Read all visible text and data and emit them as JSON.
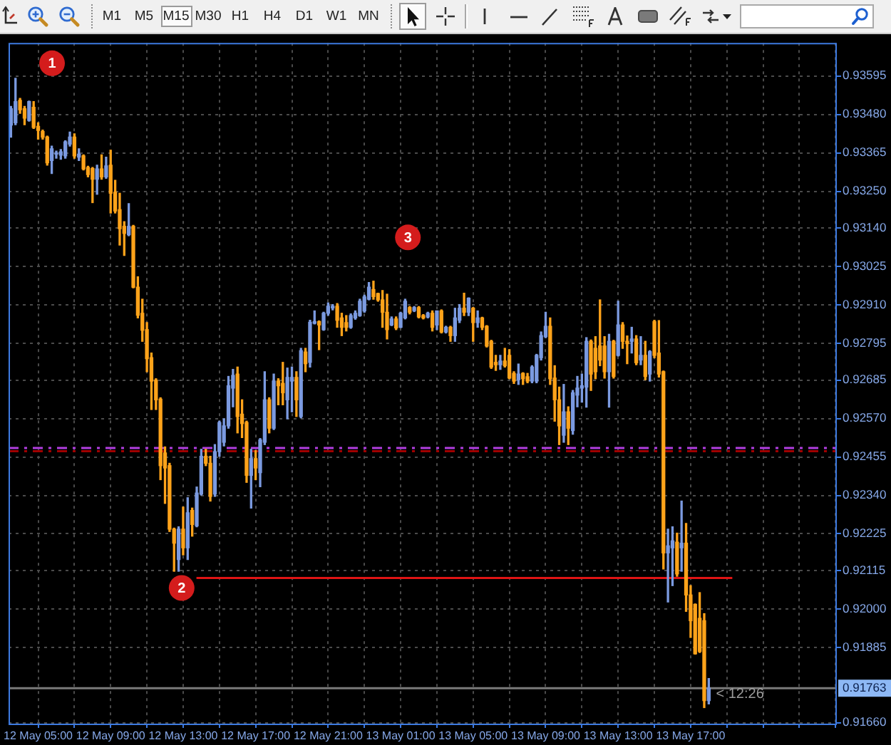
{
  "chart_data": {
    "type": "candlestick",
    "series": [
      {
        "x": [
          "--05-12T03:30",
          "--05-12T03:45",
          "--05-12T04:00",
          "--05-12T04:15",
          "--05-12T04:30",
          "--05-12T04:45",
          "--05-12T05:00",
          "--05-12T05:15",
          "--05-12T05:30",
          "--05-12T05:45",
          "--05-12T06:00",
          "--05-12T06:15",
          "--05-12T06:30",
          "--05-12T06:45",
          "--05-12T07:00",
          "--05-12T07:15",
          "--05-12T07:30",
          "--05-12T07:45",
          "--05-12T08:00",
          "--05-12T08:15",
          "--05-12T08:30",
          "--05-12T08:45",
          "--05-12T09:00",
          "--05-12T09:15",
          "--05-12T09:30",
          "--05-12T09:45",
          "--05-12T10:00",
          "--05-12T10:15",
          "--05-12T10:30",
          "--05-12T10:45",
          "--05-12T11:00",
          "--05-12T11:15",
          "--05-12T11:30",
          "--05-12T11:45",
          "--05-12T12:00",
          "--05-12T12:15",
          "--05-12T12:30",
          "--05-12T12:45",
          "--05-12T13:00",
          "--05-12T13:15",
          "--05-12T13:30",
          "--05-12T13:45",
          "--05-12T14:00",
          "--05-12T14:15",
          "--05-12T14:30",
          "--05-12T14:45",
          "--05-12T15:00",
          "--05-12T15:15",
          "--05-12T15:30",
          "--05-12T15:45",
          "--05-12T16:00",
          "--05-12T16:15",
          "--05-12T16:30",
          "--05-12T16:45",
          "--05-12T17:00",
          "--05-12T17:15",
          "--05-12T17:30",
          "--05-12T17:45",
          "--05-12T18:00",
          "--05-12T18:15",
          "--05-12T18:30",
          "--05-12T18:45",
          "--05-12T19:00",
          "--05-12T19:15",
          "--05-12T19:30",
          "--05-12T19:45",
          "--05-12T20:00",
          "--05-12T20:15",
          "--05-12T20:30",
          "--05-12T20:45",
          "--05-12T21:00",
          "--05-12T21:15",
          "--05-12T21:30",
          "--05-12T21:45",
          "--05-12T22:00",
          "--05-12T22:15",
          "--05-12T22:30",
          "--05-12T22:45",
          "--05-12T23:00",
          "--05-12T23:15",
          "--05-12T23:30",
          "--05-12T23:45",
          "--05-13T00:00",
          "--05-13T00:15",
          "--05-13T00:30",
          "--05-13T00:45",
          "--05-13T01:00",
          "--05-13T01:15",
          "--05-13T01:30",
          "--05-13T01:45",
          "--05-13T02:00",
          "--05-13T02:15",
          "--05-13T02:30",
          "--05-13T02:45",
          "--05-13T03:00",
          "--05-13T03:15",
          "--05-13T03:30",
          "--05-13T03:45",
          "--05-13T04:00",
          "--05-13T04:15",
          "--05-13T04:30",
          "--05-13T04:45",
          "--05-13T05:00",
          "--05-13T05:15",
          "--05-13T05:30",
          "--05-13T05:45",
          "--05-13T06:00",
          "--05-13T06:15",
          "--05-13T06:30",
          "--05-13T06:45",
          "--05-13T07:00",
          "--05-13T07:15",
          "--05-13T07:30",
          "--05-13T07:45",
          "--05-13T08:00",
          "--05-13T08:15",
          "--05-13T08:30",
          "--05-13T08:45",
          "--05-13T09:00",
          "--05-13T09:15",
          "--05-13T09:30",
          "--05-13T09:45",
          "--05-13T10:00",
          "--05-13T10:15",
          "--05-13T10:30",
          "--05-13T10:45",
          "--05-13T11:00",
          "--05-13T11:15",
          "--05-13T11:30",
          "--05-13T11:45",
          "--05-13T12:00",
          "--05-13T12:15",
          "--05-13T12:30",
          "--05-13T12:45",
          "--05-13T13:00",
          "--05-13T13:15",
          "--05-13T13:30",
          "--05-13T13:45",
          "--05-13T14:00",
          "--05-13T14:15",
          "--05-13T14:30",
          "--05-13T14:45",
          "--05-13T15:00",
          "--05-13T15:15",
          "--05-13T15:30",
          "--05-13T15:45",
          "--05-13T16:00",
          "--05-13T16:15",
          "--05-13T16:30",
          "--05-13T16:45",
          "--05-13T17:00",
          "--05-13T17:15",
          "--05-13T17:30",
          "--05-13T17:45",
          "--05-13T18:00"
        ],
        "ohlc": [
          [
            0.93448,
            0.93504,
            0.93412,
            0.93497
          ],
          [
            0.93455,
            0.93588,
            0.93449,
            0.93518
          ],
          [
            0.93522,
            0.93528,
            0.93483,
            0.93494
          ],
          [
            0.93497,
            0.93504,
            0.93449,
            0.93469
          ],
          [
            0.93462,
            0.9352,
            0.9346,
            0.93518
          ],
          [
            0.93501,
            0.93518,
            0.93438,
            0.93441
          ],
          [
            0.93444,
            0.93455,
            0.93406,
            0.93432
          ],
          [
            0.93429,
            0.93433,
            0.93406,
            0.93412
          ],
          [
            0.93412,
            0.93415,
            0.93328,
            0.93335
          ],
          [
            0.93342,
            0.93385,
            0.93303,
            0.93377
          ],
          [
            0.93361,
            0.9337,
            0.93349,
            0.93365
          ],
          [
            0.93358,
            0.93375,
            0.93346,
            0.93368
          ],
          [
            0.93356,
            0.93401,
            0.93349,
            0.93398
          ],
          [
            0.93391,
            0.93427,
            0.93385,
            0.93412
          ],
          [
            0.93412,
            0.93422,
            0.93349,
            0.93356
          ],
          [
            0.93352,
            0.93377,
            0.93342,
            0.93361
          ],
          [
            0.93356,
            0.93359,
            0.93314,
            0.93317
          ],
          [
            0.93321,
            0.93325,
            0.93293,
            0.933
          ],
          [
            0.93318,
            0.93321,
            0.93216,
            0.93286
          ],
          [
            0.93286,
            0.93328,
            0.93241,
            0.93317
          ],
          [
            0.93317,
            0.93359,
            0.93286,
            0.93293
          ],
          [
            0.93293,
            0.93352,
            0.93289,
            0.93326
          ],
          [
            0.93328,
            0.93373,
            0.93185,
            0.93244
          ],
          [
            0.93247,
            0.93283,
            0.93185,
            0.93191
          ],
          [
            0.93195,
            0.93244,
            0.93089,
            0.93138
          ],
          [
            0.93145,
            0.93159,
            0.93058,
            0.93124
          ],
          [
            0.9312,
            0.93213,
            0.93117,
            0.93145
          ],
          [
            0.93145,
            0.93148,
            0.92961,
            0.92963
          ],
          [
            0.92963,
            0.92994,
            0.92871,
            0.92879
          ],
          [
            0.92885,
            0.92927,
            0.92801,
            0.92834
          ],
          [
            0.92836,
            0.92857,
            0.9271,
            0.92749
          ],
          [
            0.92752,
            0.92766,
            0.92597,
            0.92682
          ],
          [
            0.92685,
            0.92689,
            0.92597,
            0.92626
          ],
          [
            0.92628,
            0.92632,
            0.92387,
            0.92429
          ],
          [
            0.92467,
            0.92485,
            0.92316,
            0.92422
          ],
          [
            0.92429,
            0.92436,
            0.92232,
            0.92239
          ],
          [
            0.92239,
            0.92242,
            0.92113,
            0.92197
          ],
          [
            0.92148,
            0.92246,
            0.92113,
            0.92239
          ],
          [
            0.92239,
            0.92305,
            0.92162,
            0.92183
          ],
          [
            0.92183,
            0.92333,
            0.92148,
            0.92288
          ],
          [
            0.92295,
            0.92302,
            0.92218,
            0.92253
          ],
          [
            0.92249,
            0.92365,
            0.92246,
            0.92347
          ],
          [
            0.92344,
            0.92478,
            0.92341,
            0.92457
          ],
          [
            0.92457,
            0.92478,
            0.92429,
            0.92436
          ],
          [
            0.92436,
            0.92457,
            0.92323,
            0.92337
          ],
          [
            0.92344,
            0.92492,
            0.92337,
            0.92471
          ],
          [
            0.92471,
            0.92562,
            0.92457,
            0.92558
          ],
          [
            0.92499,
            0.92569,
            0.92488,
            0.92548
          ],
          [
            0.92548,
            0.92696,
            0.92541,
            0.92668
          ],
          [
            0.92661,
            0.92717,
            0.92605,
            0.92699
          ],
          [
            0.92703,
            0.92724,
            0.92527,
            0.92576
          ],
          [
            0.92583,
            0.92626,
            0.92513,
            0.92555
          ],
          [
            0.92558,
            0.92562,
            0.92379,
            0.924
          ],
          [
            0.924,
            0.92478,
            0.92302,
            0.9245
          ],
          [
            0.9245,
            0.92474,
            0.92387,
            0.92422
          ],
          [
            0.92408,
            0.9251,
            0.92366,
            0.92506
          ],
          [
            0.92499,
            0.9271,
            0.92492,
            0.92626
          ],
          [
            0.92626,
            0.92632,
            0.92527,
            0.92541
          ],
          [
            0.92541,
            0.92703,
            0.92537,
            0.92682
          ],
          [
            0.92682,
            0.92689,
            0.92611,
            0.92668
          ],
          [
            0.92675,
            0.92738,
            0.92611,
            0.92647
          ],
          [
            0.92626,
            0.92721,
            0.92569,
            0.92693
          ],
          [
            0.92682,
            0.92724,
            0.9259,
            0.92693
          ],
          [
            0.92693,
            0.9271,
            0.92576,
            0.92626
          ],
          [
            0.92576,
            0.9278,
            0.92572,
            0.92773
          ],
          [
            0.92769,
            0.9278,
            0.9271,
            0.92734
          ],
          [
            0.92738,
            0.92864,
            0.92724,
            0.92858
          ],
          [
            0.92855,
            0.92892,
            0.92853,
            0.9286
          ],
          [
            0.9286,
            0.92862,
            0.92776,
            0.9285
          ],
          [
            0.92836,
            0.92888,
            0.92834,
            0.92885
          ],
          [
            0.92885,
            0.92916,
            0.92879,
            0.92906
          ],
          [
            0.92901,
            0.92911,
            0.92895,
            0.92906
          ],
          [
            0.92906,
            0.92914,
            0.92843,
            0.92864
          ],
          [
            0.92871,
            0.92885,
            0.92818,
            0.92843
          ],
          [
            0.92857,
            0.92878,
            0.92832,
            0.92843
          ],
          [
            0.92843,
            0.92883,
            0.9284,
            0.92878
          ],
          [
            0.92871,
            0.92892,
            0.92867,
            0.92885
          ],
          [
            0.92878,
            0.92927,
            0.92876,
            0.92921
          ],
          [
            0.92892,
            0.92939,
            0.92888,
            0.92934
          ],
          [
            0.92927,
            0.92977,
            0.92925,
            0.92963
          ],
          [
            0.92956,
            0.92981,
            0.92927,
            0.92935
          ],
          [
            0.92944,
            0.92945,
            0.92921,
            0.92925
          ],
          [
            0.92925,
            0.92953,
            0.92843,
            0.92888
          ],
          [
            0.92888,
            0.92942,
            0.92808,
            0.92836
          ],
          [
            0.9285,
            0.92874,
            0.92848,
            0.92868
          ],
          [
            0.92868,
            0.92874,
            0.92836,
            0.92841
          ],
          [
            0.92843,
            0.92888,
            0.92842,
            0.92885
          ],
          [
            0.92871,
            0.92927,
            0.92868,
            0.92921
          ],
          [
            0.92902,
            0.92905,
            0.92883,
            0.92888
          ],
          [
            0.92893,
            0.92905,
            0.9289,
            0.92902
          ],
          [
            0.92902,
            0.92905,
            0.92871,
            0.92874
          ],
          [
            0.92878,
            0.92881,
            0.92868,
            0.92871
          ],
          [
            0.92874,
            0.92888,
            0.92871,
            0.92885
          ],
          [
            0.92885,
            0.92892,
            0.92832,
            0.92843
          ],
          [
            0.9285,
            0.92892,
            0.92836,
            0.92892
          ],
          [
            0.92892,
            0.92895,
            0.92826,
            0.92829
          ],
          [
            0.92829,
            0.92846,
            0.92826,
            0.92843
          ],
          [
            0.92843,
            0.92846,
            0.92801,
            0.92818
          ],
          [
            0.92818,
            0.929,
            0.92801,
            0.92871
          ],
          [
            0.92864,
            0.92911,
            0.92857,
            0.929
          ],
          [
            0.929,
            0.92945,
            0.92878,
            0.92888
          ],
          [
            0.92888,
            0.92931,
            0.92878,
            0.9293
          ],
          [
            0.929,
            0.92902,
            0.92801,
            0.92857
          ],
          [
            0.92857,
            0.92892,
            0.92843,
            0.92871
          ],
          [
            0.92871,
            0.92873,
            0.92836,
            0.92843
          ],
          [
            0.92846,
            0.92848,
            0.92784,
            0.92787
          ],
          [
            0.92801,
            0.92804,
            0.9272,
            0.92724
          ],
          [
            0.92738,
            0.92759,
            0.92714,
            0.92731
          ],
          [
            0.92731,
            0.92759,
            0.92717,
            0.92742
          ],
          [
            0.92742,
            0.9278,
            0.92724,
            0.92728
          ],
          [
            0.92759,
            0.92776,
            0.92689,
            0.92691
          ],
          [
            0.92705,
            0.9271,
            0.92675,
            0.92682
          ],
          [
            0.92686,
            0.92733,
            0.92672,
            0.92703
          ],
          [
            0.92705,
            0.92707,
            0.92672,
            0.92689
          ],
          [
            0.92695,
            0.92705,
            0.92677,
            0.92682
          ],
          [
            0.92682,
            0.92728,
            0.92677,
            0.92724
          ],
          [
            0.92682,
            0.92762,
            0.92677,
            0.92759
          ],
          [
            0.92752,
            0.92829,
            0.92745,
            0.92818
          ],
          [
            0.92815,
            0.92888,
            0.92812,
            0.92846
          ],
          [
            0.92846,
            0.92871,
            0.92672,
            0.92689
          ],
          [
            0.92691,
            0.92728,
            0.92562,
            0.92626
          ],
          [
            0.92626,
            0.92664,
            0.92492,
            0.92548
          ],
          [
            0.9252,
            0.92672,
            0.92499,
            0.9259
          ],
          [
            0.9259,
            0.92605,
            0.92492,
            0.92541
          ],
          [
            0.92534,
            0.92654,
            0.92523,
            0.92647
          ],
          [
            0.9264,
            0.92696,
            0.92605,
            0.92661
          ],
          [
            0.92661,
            0.92703,
            0.92619,
            0.92668
          ],
          [
            0.92664,
            0.92812,
            0.92604,
            0.92801
          ],
          [
            0.92801,
            0.92805,
            0.92654,
            0.92703
          ],
          [
            0.9278,
            0.92815,
            0.92689,
            0.9271
          ],
          [
            0.92787,
            0.92925,
            0.92728,
            0.92745
          ],
          [
            0.92787,
            0.92815,
            0.92691,
            0.9271
          ],
          [
            0.9271,
            0.92822,
            0.92604,
            0.92801
          ],
          [
            0.92801,
            0.92804,
            0.92691,
            0.92696
          ],
          [
            0.92759,
            0.92921,
            0.92757,
            0.9285
          ],
          [
            0.9285,
            0.92857,
            0.9278,
            0.92801
          ],
          [
            0.92801,
            0.92817,
            0.92734,
            0.92794
          ],
          [
            0.92801,
            0.92843,
            0.92766,
            0.92808
          ],
          [
            0.92808,
            0.92818,
            0.92731,
            0.92737
          ],
          [
            0.92745,
            0.92815,
            0.92731,
            0.92759
          ],
          [
            0.92759,
            0.92801,
            0.92686,
            0.92696
          ],
          [
            0.92703,
            0.92773,
            0.92682,
            0.9277
          ],
          [
            0.9286,
            0.92864,
            0.92752,
            0.92759
          ],
          [
            0.92766,
            0.92863,
            0.92694,
            0.92703
          ],
          [
            0.9271,
            0.92712,
            0.9212,
            0.92168
          ],
          [
            0.92168,
            0.92239,
            0.92021,
            0.92189
          ],
          [
            0.92183,
            0.92246,
            0.9207,
            0.92204
          ],
          [
            0.922,
            0.92227,
            0.92098,
            0.92105
          ],
          [
            0.92183,
            0.92323,
            0.92113,
            0.92197
          ],
          [
            0.92197,
            0.92256,
            0.91993,
            0.92042
          ],
          [
            0.92042,
            0.9207,
            0.91915,
            0.91965
          ],
          [
            0.92014,
            0.92015,
            0.91865,
            0.91866
          ],
          [
            0.91972,
            0.92049,
            0.9187,
            0.91873
          ],
          [
            0.91965,
            0.91986,
            0.91705,
            0.91726
          ],
          [
            0.91726,
            0.91792,
            0.91716,
            0.91763
          ]
        ],
        "colors": [
          "#7b9ae0",
          "#7b9ae0",
          "#ffa31a",
          "#ffa31a",
          "#7b9ae0",
          "#ffa31a",
          "#ffa31a",
          "#ffa31a",
          "#ffa31a",
          "#7b9ae0",
          "#7b9ae0",
          "#7b9ae0",
          "#7b9ae0",
          "#7b9ae0",
          "#ffa31a",
          "#7b9ae0",
          "#ffa31a",
          "#ffa31a",
          "#ffa31a",
          "#7b9ae0",
          "#ffa31a",
          "#7b9ae0",
          "#ffa31a",
          "#ffa31a",
          "#ffa31a",
          "#ffa31a",
          "#7b9ae0",
          "#ffa31a",
          "#ffa31a",
          "#ffa31a",
          "#ffa31a",
          "#ffa31a",
          "#ffa31a",
          "#ffa31a",
          "#ffa31a",
          "#ffa31a",
          "#ffa31a",
          "#7b9ae0",
          "#ffa31a",
          "#7b9ae0",
          "#ffa31a",
          "#7b9ae0",
          "#7b9ae0",
          "#ffa31a",
          "#ffa31a",
          "#7b9ae0",
          "#7b9ae0",
          "#7b9ae0",
          "#7b9ae0",
          "#7b9ae0",
          "#ffa31a",
          "#ffa31a",
          "#ffa31a",
          "#7b9ae0",
          "#ffa31a",
          "#7b9ae0",
          "#7b9ae0",
          "#ffa31a",
          "#7b9ae0",
          "#ffa31a",
          "#ffa31a",
          "#7b9ae0",
          "#7b9ae0",
          "#ffa31a",
          "#7b9ae0",
          "#ffa31a",
          "#7b9ae0",
          "#7b9ae0",
          "#ffa31a",
          "#7b9ae0",
          "#7b9ae0",
          "#7b9ae0",
          "#ffa31a",
          "#ffa31a",
          "#ffa31a",
          "#7b9ae0",
          "#7b9ae0",
          "#7b9ae0",
          "#7b9ae0",
          "#7b9ae0",
          "#ffa31a",
          "#ffa31a",
          "#ffa31a",
          "#ffa31a",
          "#7b9ae0",
          "#ffa31a",
          "#7b9ae0",
          "#7b9ae0",
          "#ffa31a",
          "#7b9ae0",
          "#ffa31a",
          "#ffa31a",
          "#7b9ae0",
          "#ffa31a",
          "#7b9ae0",
          "#ffa31a",
          "#7b9ae0",
          "#ffa31a",
          "#7b9ae0",
          "#7b9ae0",
          "#ffa31a",
          "#7b9ae0",
          "#ffa31a",
          "#7b9ae0",
          "#ffa31a",
          "#ffa31a",
          "#ffa31a",
          "#ffa31a",
          "#7b9ae0",
          "#ffa31a",
          "#ffa31a",
          "#ffa31a",
          "#7b9ae0",
          "#ffa31a",
          "#ffa31a",
          "#7b9ae0",
          "#7b9ae0",
          "#7b9ae0",
          "#7b9ae0",
          "#ffa31a",
          "#ffa31a",
          "#ffa31a",
          "#7b9ae0",
          "#ffa31a",
          "#7b9ae0",
          "#7b9ae0",
          "#7b9ae0",
          "#7b9ae0",
          "#ffa31a",
          "#ffa31a",
          "#ffa31a",
          "#ffa31a",
          "#7b9ae0",
          "#ffa31a",
          "#7b9ae0",
          "#ffa31a",
          "#ffa31a",
          "#7b9ae0",
          "#ffa31a",
          "#7b9ae0",
          "#ffa31a",
          "#7b9ae0",
          "#ffa31a",
          "#ffa31a",
          "#ffa31a",
          "#7b9ae0",
          "#7b9ae0",
          "#ffa31a",
          "#7b9ae0",
          "#ffa31a",
          "#ffa31a",
          "#ffa31a",
          "#ffa31a",
          "#ffa31a",
          "#7b9ae0"
        ]
      },
      {
        "type": "line",
        "color": "#e01414",
        "x": [
          "--05-12T13:44",
          "--05-13T19:18"
        ],
        "values": [
          0.92093,
          0.92093
        ]
      }
    ],
    "marker": "none",
    "xlim": [
      "--05-12T03:22",
      "--05-14T01:04"
    ],
    "xticks": [
      {
        "value": "--05-12T05:00",
        "label": "12 May 05:00"
      },
      {
        "value": "--05-12T07:00",
        "label": null
      },
      {
        "value": "--05-12T09:00",
        "label": "12 May 09:00"
      },
      {
        "value": "--05-12T11:00",
        "label": null
      },
      {
        "value": "--05-12T13:00",
        "label": "12 May 13:00"
      },
      {
        "value": "--05-12T15:00",
        "label": null
      },
      {
        "value": "--05-12T17:00",
        "label": "12 May 17:00"
      },
      {
        "value": "--05-12T19:00",
        "label": null
      },
      {
        "value": "--05-12T21:00",
        "label": "12 May 21:00"
      },
      {
        "value": "--05-12T23:00",
        "label": null
      },
      {
        "value": "--05-13T01:00",
        "label": "13 May 01:00"
      },
      {
        "value": "--05-13T03:00",
        "label": null
      },
      {
        "value": "--05-13T05:00",
        "label": "13 May 05:00"
      },
      {
        "value": "--05-13T07:00",
        "label": null
      },
      {
        "value": "--05-13T09:00",
        "label": "13 May 09:00"
      },
      {
        "value": "--05-13T11:00",
        "label": null
      },
      {
        "value": "--05-13T13:00",
        "label": "13 May 13:00"
      },
      {
        "value": "--05-13T15:00",
        "label": null
      },
      {
        "value": "--05-13T17:00",
        "label": "13 May 17:00"
      },
      {
        "value": "--05-13T19:00",
        "label": null
      },
      {
        "value": "--05-13T21:00",
        "label": null
      },
      {
        "value": "--05-13T23:00",
        "label": null
      },
      {
        "value": "--05-14T01:00",
        "label": null
      }
    ],
    "ylim": [
      0.91657,
      0.93694
    ],
    "yticks": [
      0.93595,
      {
        "value": 0.9348,
        "label": "0.93480"
      },
      0.93365,
      {
        "value": 0.9325,
        "label": "0.93250"
      },
      {
        "value": 0.9314,
        "label": "0.93140"
      },
      0.93025,
      {
        "value": 0.9291,
        "label": "0.92910"
      },
      0.92795,
      0.92685,
      {
        "value": 0.9257,
        "label": "0.92570"
      },
      0.92455,
      {
        "value": 0.9234,
        "label": "0.92340"
      },
      0.92225,
      0.92115,
      {
        "value": 0.92,
        "label": "0.92000"
      },
      0.91885,
      {
        "value": 0.9166,
        "label": "0.91660"
      }
    ],
    "grid": true,
    "ref_lines": [
      {
        "axis": "y",
        "value": 0.92482,
        "color": "#b23ee0",
        "line_style": "dashed"
      },
      {
        "axis": "y",
        "value": 0.92472,
        "color": "#a00000",
        "line_style": "dashed"
      },
      {
        "axis": "y",
        "value": 0.91763,
        "label": "0.91763",
        "color": "#7a7a7a"
      }
    ],
    "annotations": [
      "M1",
      "M5",
      "M15",
      "M30",
      "H1",
      "H4",
      "D1",
      "W1",
      "MN",
      {
        "text": "1",
        "x": "--05-12T05:46",
        "y": 0.93633
      },
      {
        "text": "2",
        "x": "--05-12T12:55",
        "y": 0.92063
      },
      {
        "text": "3",
        "x": "--05-13T01:24",
        "y": 0.93112
      },
      {
        "text": "< 12:26",
        "x": "--05-13T18:24",
        "y": 0.91745
      }
    ]
  }
}
